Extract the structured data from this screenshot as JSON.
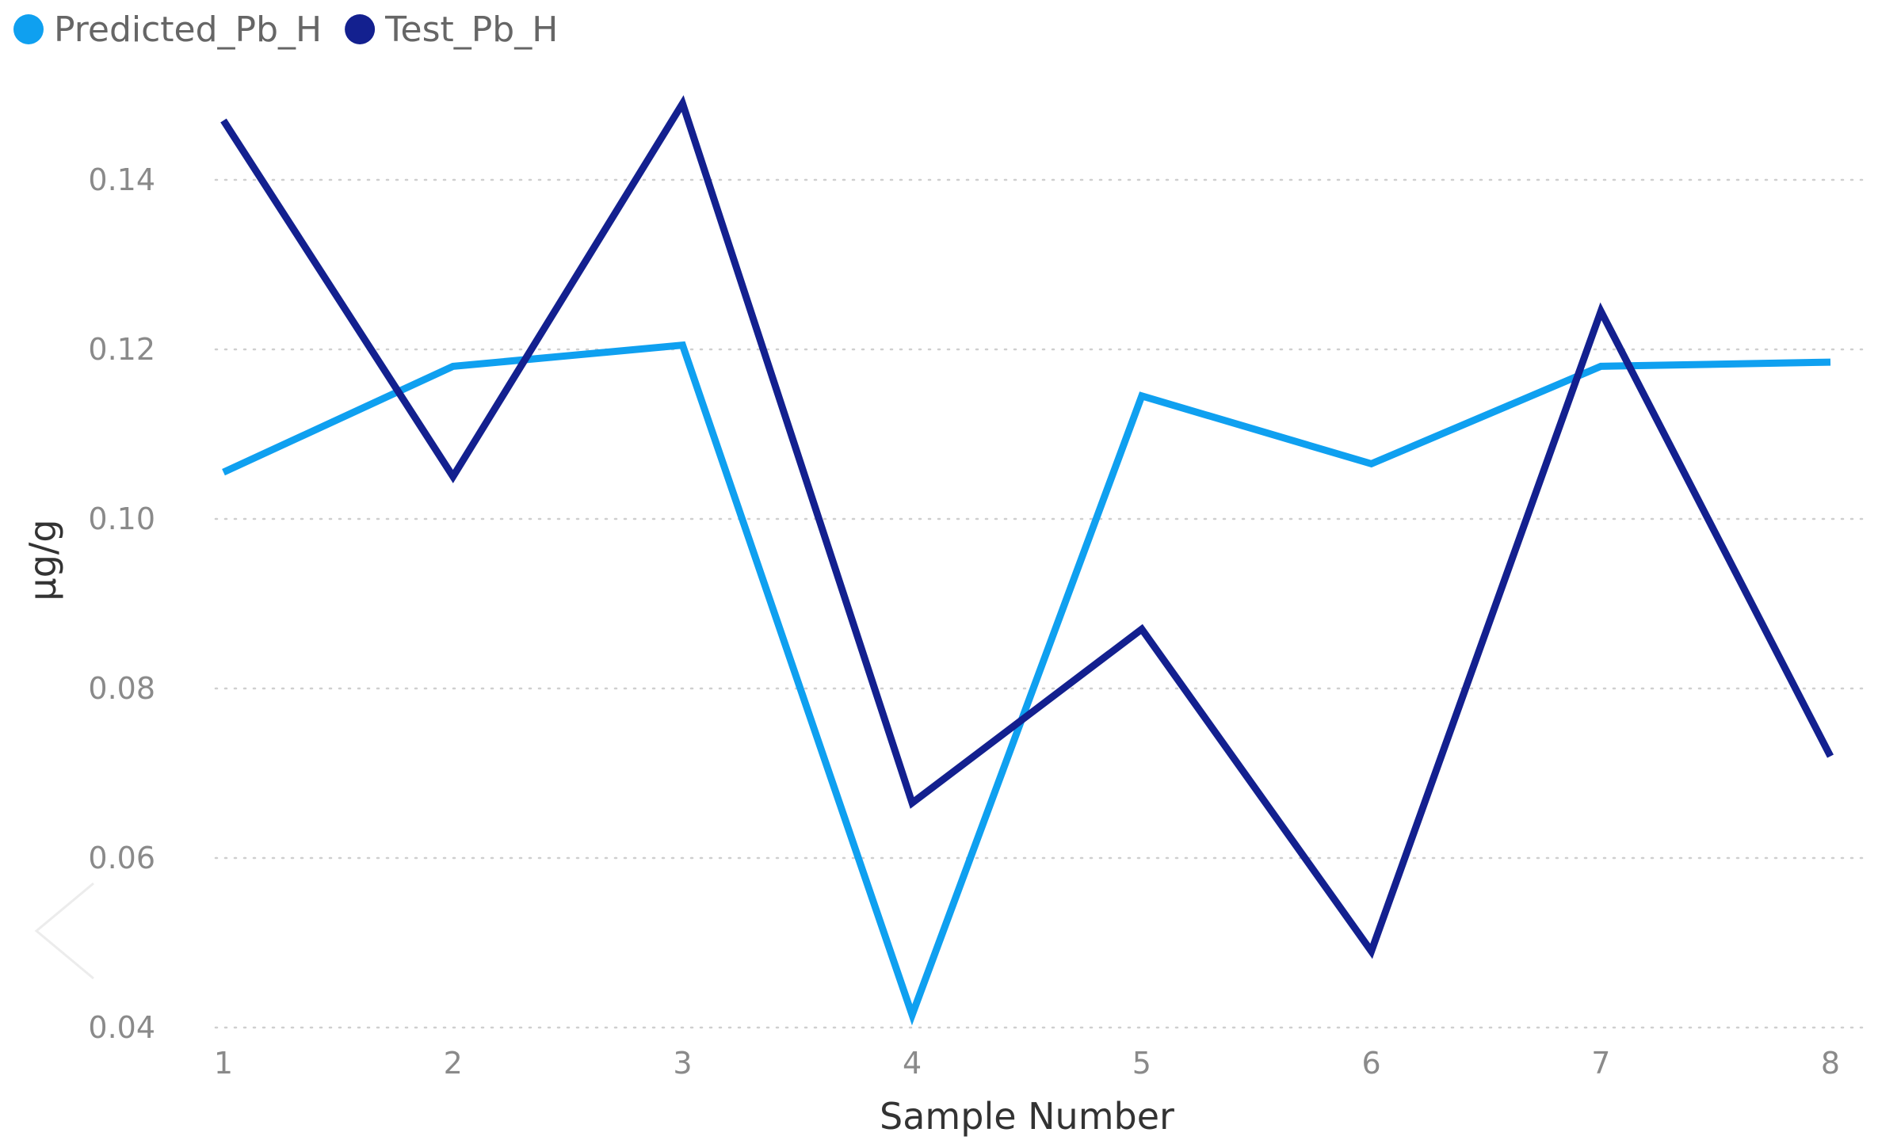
{
  "chart_data": {
    "type": "line",
    "title": "",
    "xlabel": "Sample Number",
    "ylabel": "µg/g",
    "categories": [
      "1",
      "2",
      "3",
      "4",
      "5",
      "6",
      "7",
      "8"
    ],
    "x": [
      1,
      2,
      3,
      4,
      5,
      6,
      7,
      8
    ],
    "ylim": [
      0.04,
      0.15
    ],
    "yticks": [
      0.04,
      0.06,
      0.08,
      0.1,
      0.12,
      0.14
    ],
    "ytick_labels": [
      "0.04",
      "0.06",
      "0.08",
      "0.10",
      "0.12",
      "0.14"
    ],
    "grid": true,
    "legend": "top-left",
    "series": [
      {
        "name": "Predicted_Pb_H",
        "color": "#0fa0f0",
        "values": [
          0.1055,
          0.118,
          0.1205,
          0.0415,
          0.1145,
          0.1065,
          0.118,
          0.1185
        ]
      },
      {
        "name": "Test_Pb_H",
        "color": "#13208f",
        "values": [
          0.147,
          0.105,
          0.149,
          0.0665,
          0.087,
          0.049,
          0.1245,
          0.072
        ]
      }
    ]
  }
}
